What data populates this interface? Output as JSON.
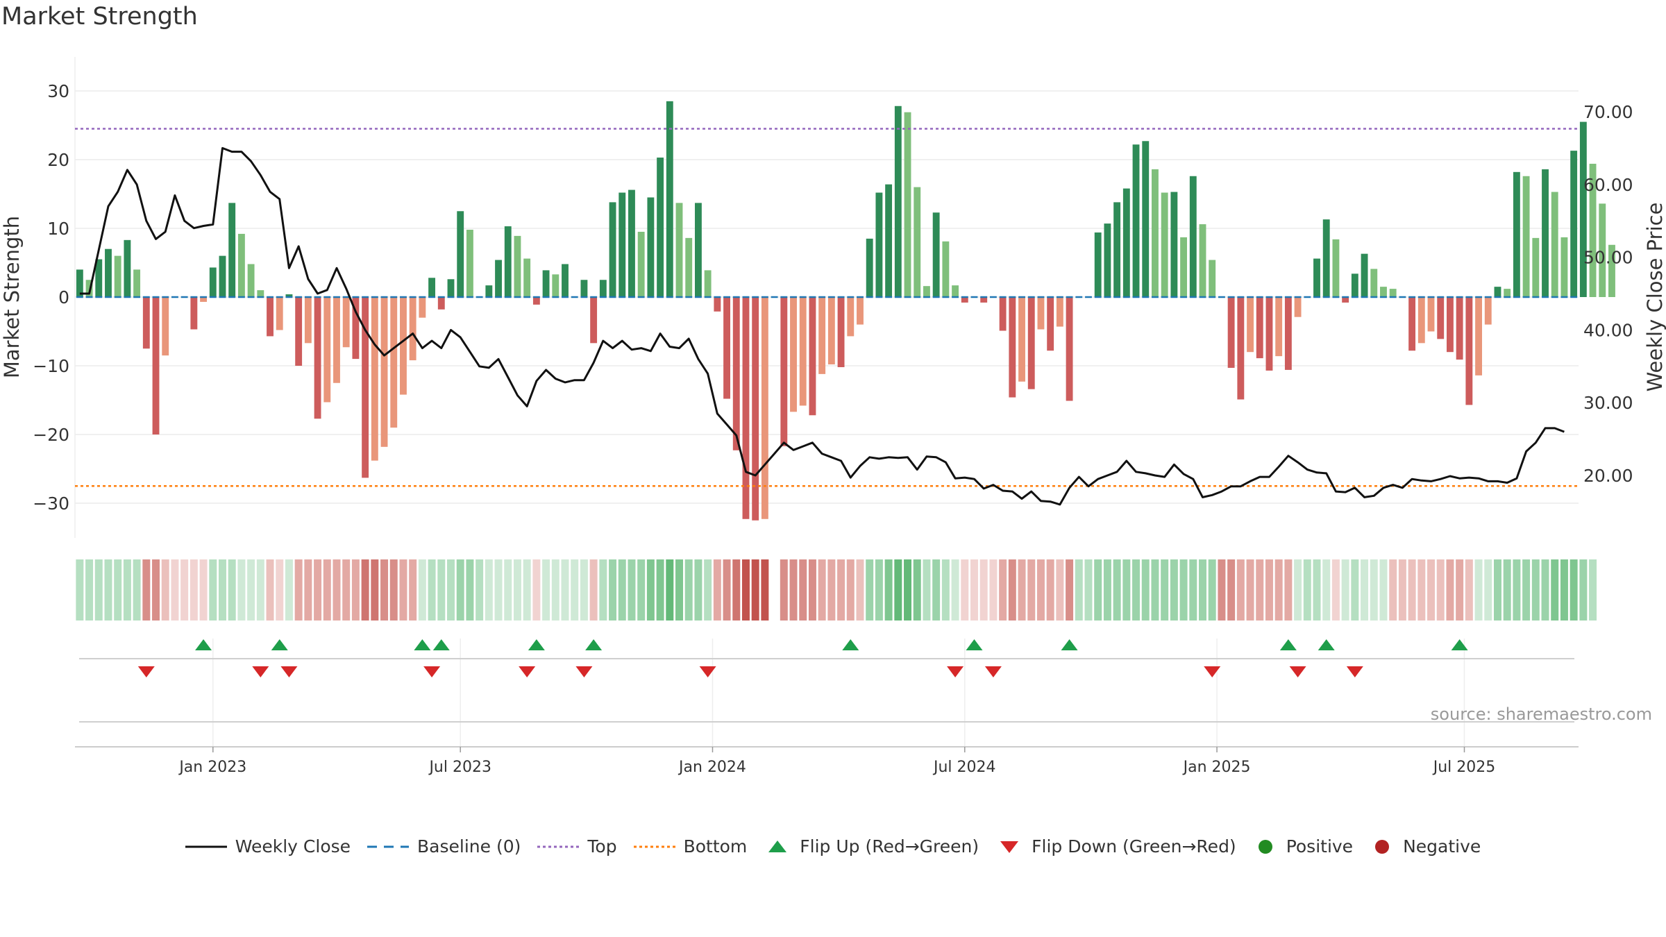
{
  "title": "Market Strength",
  "source": "source: sharemaestro.com",
  "colors": {
    "pos_strong": "#2e8b57",
    "pos_weak": "#7fbf7b",
    "neg_strong": "#cd5c5c",
    "neg_weak": "#e9967a",
    "price": "#111111",
    "baseline": "#1f77b4",
    "top": "#9467bd",
    "bottom": "#ff7f0e",
    "flip_up": "#1e9e4a",
    "flip_down": "#d62728",
    "legend_pos": "#228b22",
    "legend_neg": "#b22222"
  },
  "legend": {
    "weekly_close": "Weekly Close",
    "baseline": "Baseline (0)",
    "top": "Top",
    "bottom": "Bottom",
    "flip_up": "Flip Up (Red→Green)",
    "flip_down": "Flip Down (Green→Red)",
    "positive": "Positive",
    "negative": "Negative"
  },
  "chart_data": {
    "type": "bar",
    "title": "Market Strength",
    "ylabel": "Market Strength",
    "y2label": "Weekly Close Price",
    "ylim": [
      -35,
      35
    ],
    "y2lim": [
      10,
      76
    ],
    "yticks": [
      30,
      20,
      10,
      0,
      -10,
      -20,
      -30
    ],
    "ytick_labels": [
      "30",
      "20",
      "10",
      "0",
      "−10",
      "−20",
      "−30"
    ],
    "y2ticks": [
      70,
      60,
      50,
      40,
      30,
      20
    ],
    "y2tick_labels": [
      "70.00",
      "60.00",
      "50.00",
      "40.00",
      "30.00",
      "20.00"
    ],
    "xtick_labels": [
      "Jan 2023",
      "Jul 2023",
      "Jan 2024",
      "Jul 2024",
      "Jan 2025",
      "Jul 2025"
    ],
    "xtick_weeks": [
      14,
      40,
      66.5,
      93,
      119.5,
      145.5
    ],
    "week_count": 158,
    "top_level": 24.5,
    "bottom_level": -27.5,
    "baseline": 0,
    "strength": [
      4,
      2.5,
      5.5,
      7,
      6,
      8.3,
      4,
      -7.5,
      -20,
      -8.5,
      0,
      0,
      -4.7,
      -0.7,
      4.3,
      6,
      13.7,
      9.2,
      4.8,
      1,
      -5.7,
      -4.8,
      0.4,
      -10,
      -6.7,
      -17.7,
      -15.3,
      -12.5,
      -7.3,
      -9,
      -26.3,
      -23.8,
      -21.8,
      -19,
      -14.2,
      -9.2,
      -3,
      2.8,
      -1.8,
      2.6,
      12.5,
      9.8,
      0,
      1.7,
      5.4,
      10.3,
      8.9,
      5.6,
      -1.1,
      3.9,
      3.3,
      4.8,
      0,
      2.5,
      -6.7,
      2.5,
      13.8,
      15.2,
      15.6,
      9.5,
      14.5,
      20.3,
      28.5,
      13.7,
      8.6,
      13.7,
      3.9,
      -2.1,
      -14.8,
      -22.3,
      -32.3,
      -32.5,
      -32.3,
      0,
      -21.7,
      -16.7,
      -15.8,
      -17.2,
      -11.2,
      -9.8,
      -10.2,
      -5.7,
      -4,
      8.5,
      15.2,
      16.4,
      27.8,
      26.9,
      16,
      1.6,
      12.3,
      8.1,
      1.7,
      -0.8,
      0,
      -0.8,
      0,
      -4.9,
      -14.6,
      -12.3,
      -13.4,
      -4.7,
      -7.8,
      -4.3,
      -15.1,
      0,
      0,
      9.4,
      10.7,
      13.8,
      15.8,
      22.2,
      22.7,
      18.6,
      15.2,
      15.3,
      8.7,
      17.6,
      10.6,
      5.4,
      0,
      -10.3,
      -14.9,
      -8,
      -8.9,
      -10.7,
      -8.6,
      -10.6,
      -2.9,
      0,
      5.6,
      11.3,
      8.4,
      -0.8,
      3.4,
      6.3,
      4.1,
      1.5,
      1.2,
      0,
      -7.8,
      -6.7,
      -5,
      -6.1,
      -8,
      -9.1,
      -15.7,
      -11.4,
      -4,
      1.5,
      1.2,
      18.2,
      17.6,
      8.6,
      18.6,
      15.3,
      8.7,
      21.3,
      25.5,
      19.4,
      13.6,
      7.6
    ],
    "price": [
      45,
      45,
      51,
      57,
      59,
      62,
      60,
      55,
      52.5,
      53.5,
      58.5,
      55,
      54,
      54.3,
      54.5,
      65,
      64.5,
      64.5,
      63.2,
      61.3,
      59,
      58,
      48.5,
      51.5,
      47,
      45,
      45.5,
      48.5,
      45.7,
      42.5,
      40,
      38,
      36.5,
      37.5,
      38.5,
      39.5,
      37.5,
      38.5,
      37.5,
      40,
      39,
      37,
      35,
      34.8,
      36,
      33.5,
      31,
      29.5,
      33,
      34.5,
      33.3,
      32.8,
      33.1,
      33.1,
      35.5,
      38.5,
      37.5,
      38.5,
      37.3,
      37.5,
      37.1,
      39.5,
      37.7,
      37.5,
      38.8,
      36,
      34,
      28.5,
      27,
      25.5,
      20.5,
      20,
      21.5,
      23,
      24.5,
      23.5,
      24,
      24.5,
      23,
      22.5,
      22,
      19.7,
      21.3,
      22.5,
      22.3,
      22.5,
      22.4,
      22.5,
      20.8,
      22.6,
      22.5,
      21.8,
      19.6,
      19.7,
      19.5,
      18.2,
      18.7,
      17.9,
      17.8,
      16.8,
      17.8,
      16.5,
      16.4,
      16,
      18.3,
      19.8,
      18.5,
      19.5,
      20,
      20.5,
      22,
      20.5,
      20.3,
      20,
      19.8,
      21.5,
      20.2,
      19.5,
      17,
      17.3,
      17.8,
      18.5,
      18.5,
      19.2,
      19.8,
      19.8,
      21.2,
      22.7,
      21.8,
      20.8,
      20.4,
      20.3,
      17.8,
      17.7,
      18.3,
      17,
      17.2,
      18.3,
      18.7,
      18.3,
      19.5,
      19.3,
      19.2,
      19.5,
      19.9,
      19.6,
      19.7,
      19.6,
      19.2,
      19.2,
      19,
      19.6,
      23.3,
      24.5,
      26.5,
      26.5,
      26
    ],
    "band_values": [
      2,
      2,
      2,
      2,
      2,
      2,
      2,
      -4,
      -4,
      -2,
      -1,
      -1,
      -1,
      -1,
      2,
      2,
      2,
      1,
      1,
      1,
      -2,
      -1,
      1,
      -3,
      -3,
      -3,
      -3,
      -3,
      -3,
      -3,
      -5,
      -5,
      -4,
      -4,
      -3,
      -3,
      1,
      2,
      2,
      2,
      3,
      3,
      2,
      1,
      1,
      1,
      1,
      1,
      -1,
      1,
      1,
      1,
      1,
      1,
      -2,
      2,
      3,
      3,
      3,
      3,
      4,
      4,
      5,
      4,
      3,
      3,
      2,
      -3,
      -4,
      -5,
      -6,
      -6,
      -6,
      0,
      -4,
      -4,
      -4,
      -4,
      -3,
      -3,
      -3,
      -3,
      -2,
      3,
      3,
      4,
      5,
      5,
      4,
      2,
      3,
      2,
      1,
      -1,
      -1,
      -1,
      -1,
      -3,
      -4,
      -3,
      -3,
      -3,
      -3,
      -2,
      -4,
      2,
      2,
      3,
      3,
      3,
      3,
      3,
      3,
      3,
      3,
      3,
      3,
      3,
      3,
      3,
      -4,
      -4,
      -3,
      -3,
      -3,
      -3,
      -3,
      -3,
      1,
      2,
      2,
      1,
      -1,
      1,
      2,
      1,
      1,
      1,
      -2,
      -2,
      -2,
      -2,
      -2,
      -2,
      -3,
      -3,
      -2,
      1,
      1,
      3,
      3,
      3,
      3,
      3,
      3,
      4,
      4,
      4,
      3,
      2
    ],
    "flip_up_weeks": [
      13,
      21,
      36,
      38,
      48,
      54,
      81,
      94,
      104,
      127,
      131,
      145
    ],
    "flip_down_weeks": [
      7,
      19,
      22,
      37,
      47,
      53,
      66,
      92,
      96,
      119,
      128,
      134
    ]
  }
}
